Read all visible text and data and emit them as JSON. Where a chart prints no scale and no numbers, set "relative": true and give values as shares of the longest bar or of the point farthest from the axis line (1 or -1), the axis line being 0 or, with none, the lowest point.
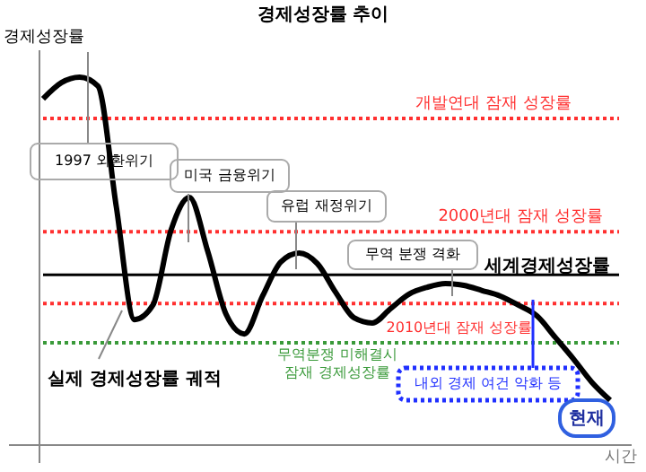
{
  "chart_data": {
    "type": "line",
    "relative": true,
    "title": "경제성장률 추이",
    "xlabel": "시간",
    "ylabel": "경제성장률",
    "categories": [
      null,
      null,
      null,
      null,
      null,
      null,
      null,
      null,
      null,
      null,
      null,
      null,
      null,
      null,
      null,
      null,
      null,
      null,
      null,
      null,
      null,
      null,
      null,
      null,
      null,
      null,
      null,
      null,
      null,
      null,
      null,
      null
    ],
    "series": [
      {
        "color": "#000000",
        "values": [
          0.941,
          0.985,
          1,
          0.976,
          0.649,
          0.341,
          0.38,
          0.585,
          0.673,
          0.527,
          0.356,
          0.302,
          0.405,
          0.498,
          0.522,
          0.493,
          0.415,
          0.346,
          0.332,
          0.371,
          0.41,
          0.429,
          0.439,
          0.434,
          0.42,
          0.405,
          0.38,
          0.351,
          0.293,
          0.234,
          0.171,
          0.122
        ]
      }
    ],
    "ref_lines": [
      {
        "axis": "y",
        "value": 0.888,
        "label": "개발연대 잠재 성장률",
        "color": "#ff3030",
        "line_style": "dotted"
      },
      {
        "axis": "y",
        "value": 0.58,
        "label": "2000년대 잠재 성장률",
        "color": "#ff3030",
        "line_style": "dotted"
      },
      {
        "axis": "y",
        "value": 0.463,
        "label": "세계경제성장률",
        "color": "#000000",
        "line_style": "solid"
      },
      {
        "axis": "y",
        "value": 0.385,
        "label": "2010년대 잠재 성장률",
        "color": "#ff3030",
        "line_style": "dotted"
      },
      {
        "axis": "y",
        "value": 0.278,
        "label": "무역분쟁 미해결시\n잠재 경제성장률",
        "color": "#3a9a3a",
        "line_style": "dotted"
      }
    ],
    "annotations": [
      "1997 외환위기",
      "미국 금융위기",
      "유럽 재정위기",
      "무역 분쟁 격화",
      "실제 경제성장률 궤적",
      "내외 경제 여건 악화 등",
      "현재"
    ]
  }
}
